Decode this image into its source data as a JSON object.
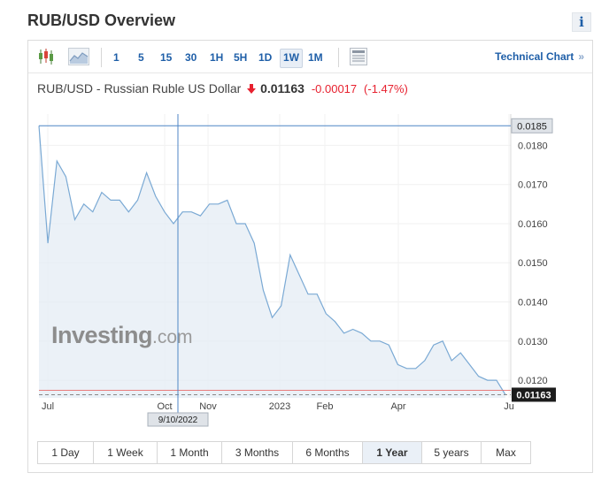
{
  "page": {
    "title": "RUB/USD Overview",
    "info_glyph": "i"
  },
  "toolbar": {
    "intervals": [
      "1",
      "5",
      "15",
      "30",
      "1H",
      "5H",
      "1D",
      "1W",
      "1M"
    ],
    "active_interval": "1W",
    "technical_link": "Technical Chart",
    "technical_chevron": "»",
    "icons": [
      "candlestick-icon",
      "area-chart-icon",
      "chart-settings-icon"
    ]
  },
  "quote": {
    "name": "RUB/USD - Russian Ruble US Dollar",
    "direction": "down",
    "price": "0.01163",
    "change": "-0.00017",
    "change_pct": "(-1.47%)",
    "down_color": "#e7212f"
  },
  "watermark": {
    "brand": "Investing",
    "suffix": ".com"
  },
  "chart_data": {
    "type": "area",
    "title": "",
    "xlabel": "",
    "ylabel": "",
    "x_tick_labels": [
      "Jul",
      "Oct",
      "Nov",
      "2023",
      "Feb",
      "Apr",
      "Ju"
    ],
    "y_tick_labels": [
      "0.0120",
      "0.0130",
      "0.0140",
      "0.0150",
      "0.0160",
      "0.0170",
      "0.0180"
    ],
    "ylim": [
      0.01155,
      0.0188
    ],
    "grid": true,
    "crosshair_value_label": "0.0185",
    "crosshair_date_label": "9/10/2022",
    "last_value_label": "0.01163",
    "line_color": "#7aa9d4",
    "fill_color": "#e4ecf4",
    "series": [
      {
        "values": [
          0.0185,
          0.0155,
          0.0176,
          0.0172,
          0.0161,
          0.0165,
          0.0163,
          0.0168,
          0.0166,
          0.0166,
          0.0163,
          0.0166,
          0.0173,
          0.0167,
          0.0163,
          0.016,
          0.0163,
          0.0163,
          0.0162,
          0.0165,
          0.0165,
          0.0166,
          0.016,
          0.016,
          0.0155,
          0.0143,
          0.0136,
          0.0139,
          0.0152,
          0.0147,
          0.0142,
          0.0142,
          0.0137,
          0.0135,
          0.0132,
          0.0133,
          0.0132,
          0.013,
          0.013,
          0.0129,
          0.0124,
          0.0123,
          0.0123,
          0.0125,
          0.0129,
          0.013,
          0.0125,
          0.0127,
          0.0124,
          0.0121,
          0.012,
          0.012,
          0.01163
        ]
      }
    ]
  },
  "range_buttons": [
    "1 Day",
    "1 Week",
    "1 Month",
    "3 Months",
    "6 Months",
    "1 Year",
    "5 years",
    "Max"
  ],
  "active_range": "1 Year"
}
